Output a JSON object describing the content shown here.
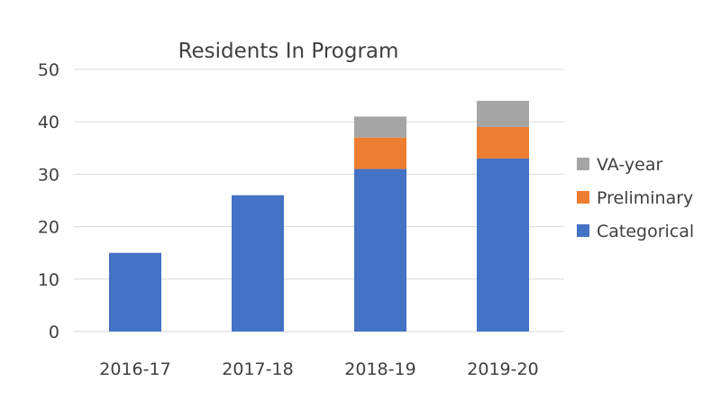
{
  "chart_data": {
    "type": "bar",
    "stacked": true,
    "title": "Residents In Program",
    "xlabel": "",
    "ylabel": "",
    "ylim": [
      0,
      50
    ],
    "yticks": [
      0,
      10,
      20,
      30,
      40,
      50
    ],
    "grid": true,
    "legend_position": "right",
    "categories": [
      "2016-17",
      "2017-18",
      "2018-19",
      "2019-20"
    ],
    "series": [
      {
        "name": "Categorical",
        "color": "#4472c4",
        "values": [
          15,
          26,
          31,
          33
        ]
      },
      {
        "name": "Preliminary",
        "color": "#ed7d31",
        "values": [
          0,
          0,
          6,
          6
        ]
      },
      {
        "name": "VA-year",
        "color": "#a5a5a5",
        "values": [
          0,
          0,
          4,
          5
        ]
      }
    ],
    "legend_order": [
      "VA-year",
      "Preliminary",
      "Categorical"
    ]
  }
}
